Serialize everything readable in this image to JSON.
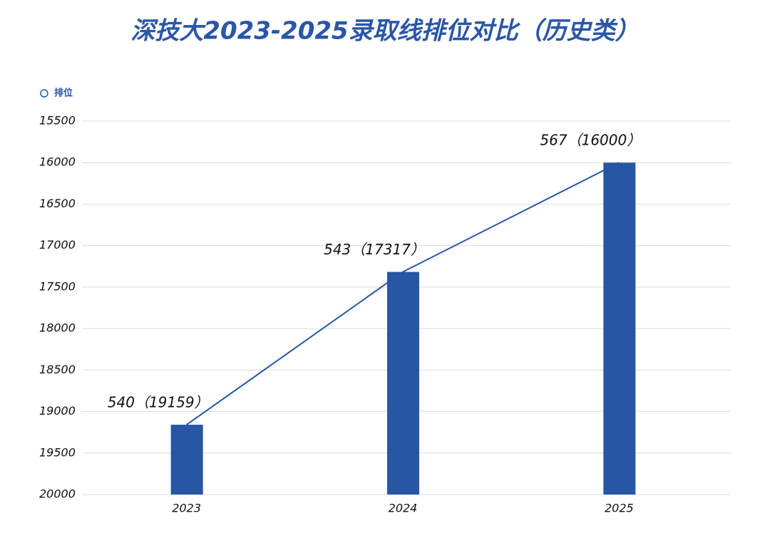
{
  "chart_data": {
    "type": "bar",
    "title": "深技大2023-2025录取线排位对比（历史类）",
    "categories": [
      "2023",
      "2024",
      "2025"
    ],
    "series": [
      {
        "name": "排位",
        "color": "#2756a5",
        "values": [
          19159,
          17317,
          16000
        ],
        "value_labels": [
          "540（19159）",
          "543（17317）",
          "567（16000）"
        ]
      }
    ],
    "ylim": [
      20000,
      15500
    ],
    "yticks": [
      15500,
      16000,
      16500,
      17000,
      17500,
      18000,
      18500,
      19000,
      19500,
      20000
    ],
    "grid": true,
    "line_overlay": true,
    "legend": "top-left"
  }
}
